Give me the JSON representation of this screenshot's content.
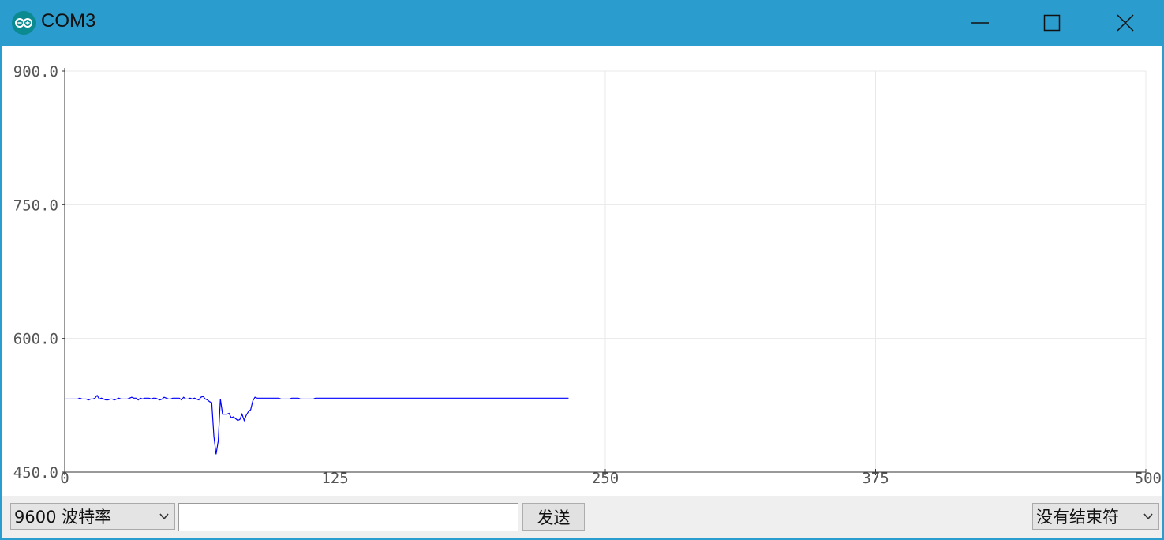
{
  "window": {
    "title": "COM3",
    "buttons": {
      "minimize": "minimize",
      "maximize": "maximize",
      "close": "close"
    }
  },
  "colors": {
    "titlebar": "#2a9ccd",
    "series": "#0000ff",
    "grid": "#e8e8e8"
  },
  "toolbar": {
    "baud_rate_label": "9600  波特率",
    "send_input_value": "",
    "send_button_label": "发送",
    "line_ending_label": "没有结束符"
  },
  "chart_data": {
    "type": "line",
    "x_ticks": [
      "0",
      "125",
      "250",
      "375",
      "500"
    ],
    "y_ticks": [
      "450.0",
      "600.0",
      "750.0",
      "900.0"
    ],
    "xlim": [
      0,
      500
    ],
    "ylim": [
      450,
      900
    ],
    "grid": true,
    "series": [
      {
        "values": [
          532,
          532,
          532,
          532,
          532,
          532,
          532,
          533,
          532,
          532,
          532,
          531,
          532,
          532,
          533,
          536,
          532,
          533,
          532,
          531,
          531,
          532,
          532,
          531,
          532,
          533,
          532,
          532,
          532,
          532,
          533,
          534,
          533,
          533,
          531,
          533,
          532,
          533,
          533,
          533,
          532,
          533,
          533,
          532,
          531,
          532,
          534,
          533,
          532,
          532,
          533,
          533,
          533,
          533,
          531,
          534,
          532,
          532,
          533,
          532,
          533,
          532,
          531,
          534,
          535,
          532,
          531,
          529,
          528,
          490,
          470,
          485,
          532,
          515,
          515,
          515,
          516,
          511,
          512,
          510,
          508,
          509,
          515,
          508,
          514,
          518,
          520,
          530,
          534,
          533,
          533,
          533,
          533,
          533,
          533,
          533,
          533,
          533,
          533,
          533,
          532,
          532,
          532,
          532,
          532,
          533,
          533,
          533,
          533,
          532,
          532,
          532,
          532,
          532,
          532,
          532,
          533,
          533,
          533,
          533,
          533,
          533,
          533,
          533,
          533,
          533,
          533,
          533,
          533,
          533,
          533,
          533,
          533,
          533,
          533,
          533,
          533,
          533,
          533,
          533,
          533,
          533,
          533,
          533,
          533,
          533,
          533,
          533,
          533,
          533,
          533,
          533,
          533,
          533,
          533,
          533,
          533,
          533,
          533,
          533,
          533,
          533,
          533,
          533,
          533,
          533,
          533,
          533,
          533,
          533,
          533,
          533,
          533,
          533,
          533,
          533,
          533,
          533,
          533,
          533,
          533,
          533,
          533,
          533,
          533,
          533,
          533,
          533,
          533,
          533,
          533,
          533,
          533,
          533,
          533,
          533,
          533,
          533,
          533,
          533,
          533,
          533,
          533,
          533,
          533,
          533,
          533,
          533,
          533,
          533,
          533,
          533,
          533,
          533,
          533,
          533,
          533,
          533,
          533,
          533,
          533,
          533,
          533,
          533,
          533,
          533,
          533,
          533,
          533,
          533,
          533,
          533,
          533,
          533
        ],
        "_note_ignore": ""
      }
    ]
  }
}
